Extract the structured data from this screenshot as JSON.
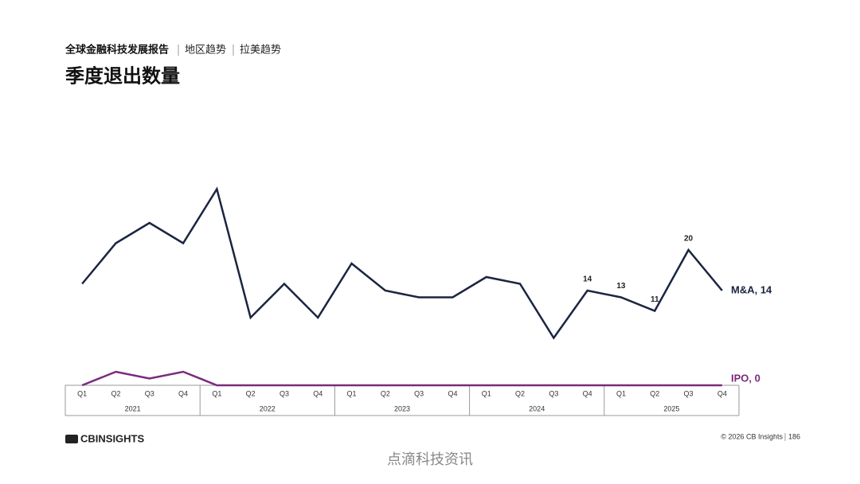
{
  "header": {
    "report": "全球金融科技发展报告",
    "section": "地区趋势",
    "subsection": "拉美趋势"
  },
  "chart_data": {
    "type": "line",
    "title": "季度退出数量",
    "categories": [
      "Q1",
      "Q2",
      "Q3",
      "Q4",
      "Q1",
      "Q2",
      "Q3",
      "Q4",
      "Q1",
      "Q2",
      "Q3",
      "Q4",
      "Q1",
      "Q2",
      "Q3",
      "Q4",
      "Q1",
      "Q2",
      "Q3",
      "Q4"
    ],
    "years": [
      "2021",
      "2022",
      "2023",
      "2024",
      "2025"
    ],
    "series": [
      {
        "name": "M&A, 14",
        "color": "#1b2541",
        "values": [
          15,
          21,
          24,
          21,
          29,
          10,
          15,
          10,
          18,
          14,
          13,
          13,
          16,
          15,
          7,
          14,
          13,
          11,
          20,
          14
        ],
        "value_labels": [
          null,
          null,
          null,
          null,
          null,
          null,
          null,
          null,
          null,
          null,
          null,
          null,
          null,
          null,
          null,
          "14",
          "13",
          "11",
          "20",
          null
        ]
      },
      {
        "name": "IPO, 0",
        "color": "#7b2a7e",
        "values": [
          0,
          2,
          1,
          2,
          0,
          0,
          0,
          0,
          0,
          0,
          0,
          0,
          0,
          0,
          0,
          0,
          0,
          0,
          0,
          0
        ]
      }
    ]
  },
  "footer": {
    "logo": "CBINSIGHTS",
    "copyright": "© 2026 CB Insights",
    "page": "186",
    "watermark": "点滴科技资讯"
  }
}
